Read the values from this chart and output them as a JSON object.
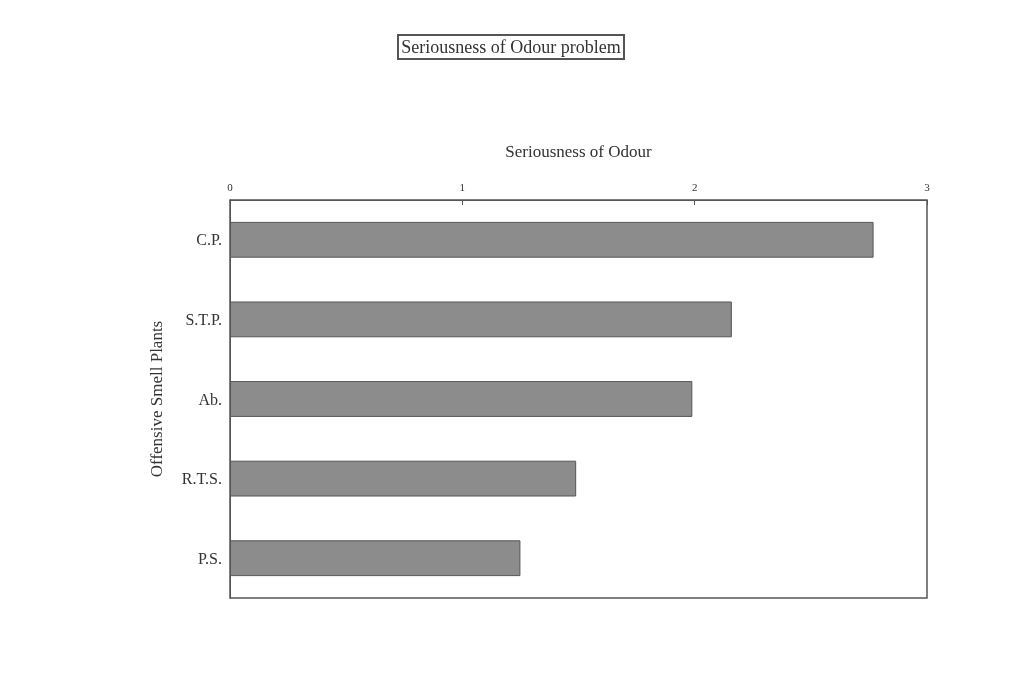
{
  "chart_data": {
    "type": "bar",
    "orientation": "horizontal",
    "title": "Seriousness of Odour problem",
    "xlabel": "Seriousness of Odour",
    "ylabel": "Offensive Smell Plants",
    "categories": [
      "C.P.",
      "S.T.P.",
      "Ab.",
      "R.T.S.",
      "P.S."
    ],
    "values": [
      2.77,
      2.16,
      1.99,
      1.49,
      1.25
    ],
    "color": "#8c8c8c",
    "xlim": [
      0,
      3
    ],
    "xticks": [
      0,
      1,
      2,
      3
    ]
  }
}
